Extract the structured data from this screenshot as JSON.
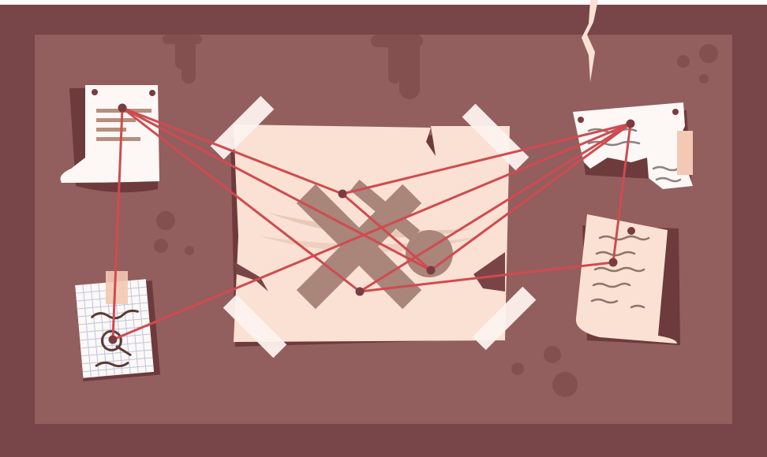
{
  "scene": {
    "subject": "evidence board",
    "colors": {
      "frame": "#784548",
      "board": "#935e5e",
      "board_stain": "#84504f",
      "paper_light": "#fae1d3",
      "paper_white": "#fdf8f6",
      "paper_shadow": "#6d3b3c",
      "tape": "#fdf3ef",
      "string": "#cf4b50",
      "pin": "#7a3c3f",
      "ink": "#9b7a68",
      "mark": "#a9857a"
    },
    "icons": [
      "x-mark-icon",
      "key-icon",
      "pin-icon",
      "tape-icon",
      "crack-icon"
    ]
  }
}
